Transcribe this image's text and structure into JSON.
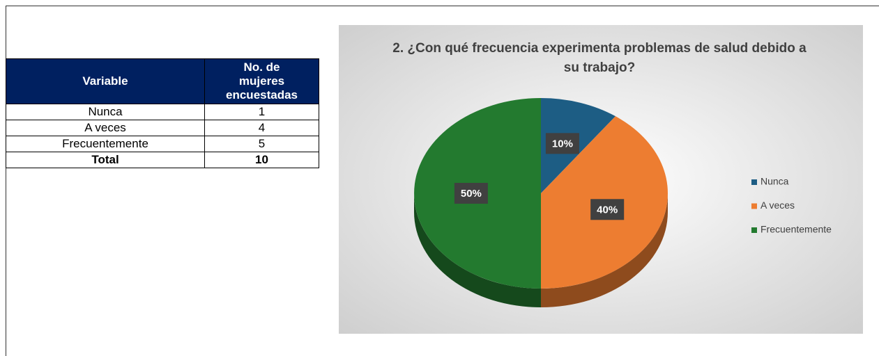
{
  "table": {
    "header": [
      "Variable",
      "No. de mujeres encuestadas"
    ],
    "rows": [
      [
        "Nunca",
        "1"
      ],
      [
        "A veces",
        "4"
      ],
      [
        "Frecuentemente",
        "5"
      ],
      [
        "Total",
        "10"
      ]
    ]
  },
  "chart_data": {
    "type": "pie",
    "title": "2. ¿Con qué frecuencia experimenta problemas de salud debido a su trabajo?",
    "categories": [
      "Nunca",
      "A veces",
      "Frecuentemente"
    ],
    "values": [
      10,
      40,
      50
    ],
    "value_labels": [
      "10%",
      "40%",
      "50%"
    ],
    "colors": [
      "#1d5d84",
      "#ed7d31",
      "#237a2f"
    ],
    "legend": "right"
  }
}
